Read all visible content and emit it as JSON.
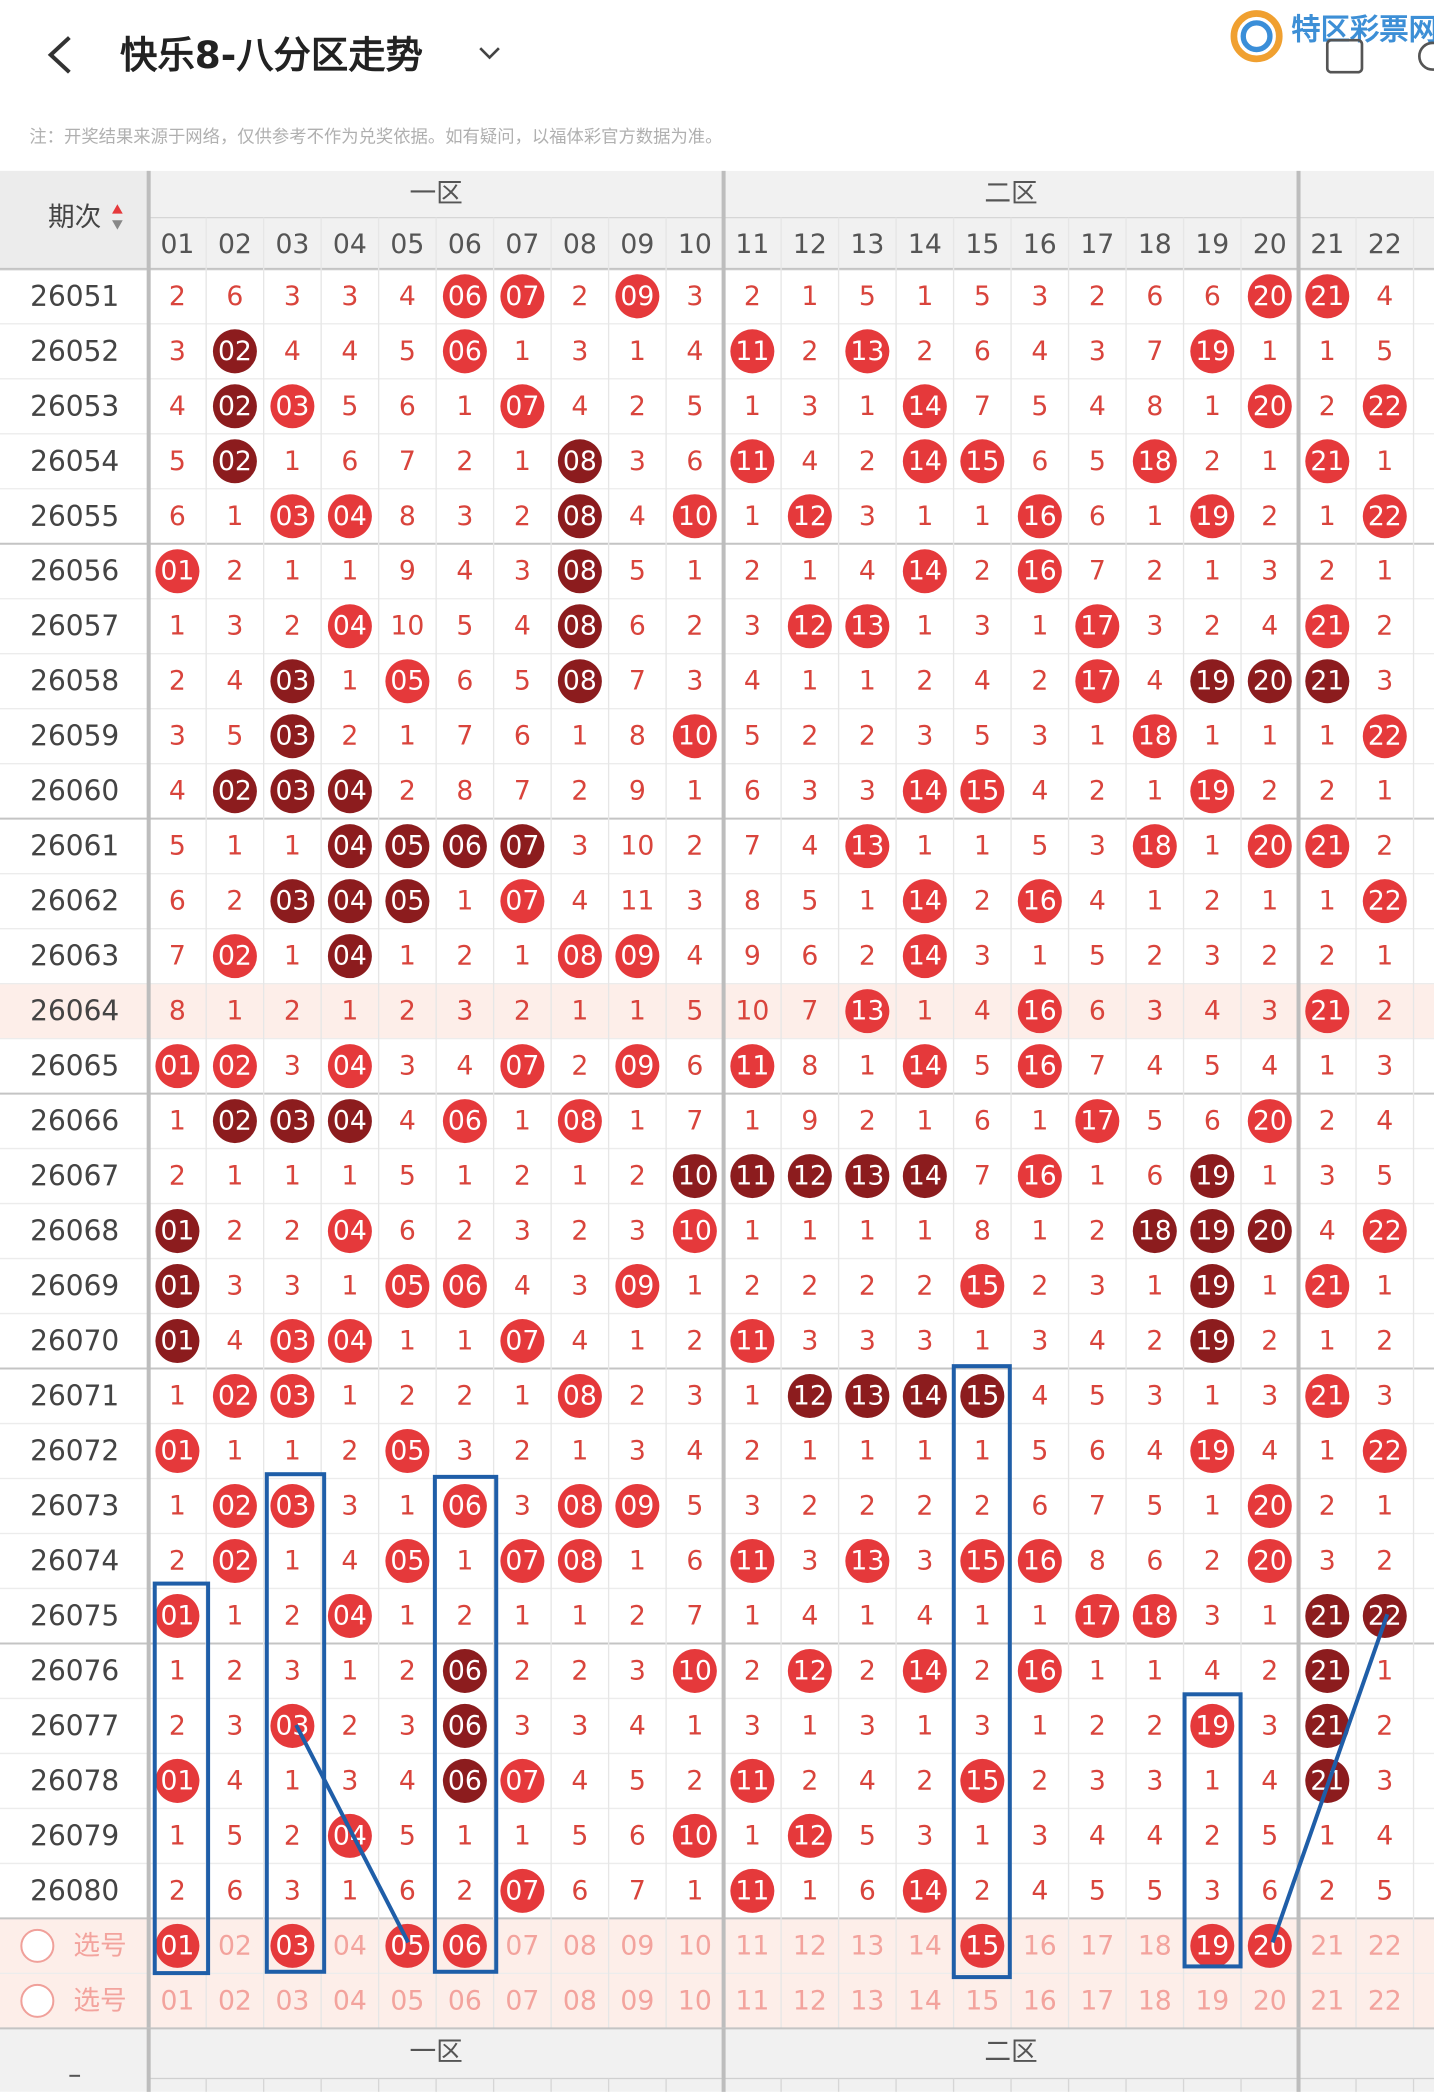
{
  "header": {
    "title": "快乐8-八分区走势",
    "logo": "特区彩票网"
  },
  "notice": "注：开奖结果来源于网络，仅供参考不作为兑奖依据。如有疑问，以福体彩官方数据为准。",
  "table": {
    "issue_header": "期次",
    "zones": [
      "一区",
      "二区"
    ],
    "columns": [
      "01",
      "02",
      "03",
      "04",
      "05",
      "06",
      "07",
      "08",
      "09",
      "10",
      "11",
      "12",
      "13",
      "14",
      "15",
      "16",
      "17",
      "18",
      "19",
      "20",
      "21",
      "22"
    ],
    "kind_colors": {
      "r": "#e5393b",
      "d": "#8c1c1e",
      "text": "#d9443c",
      "faded": "#f3a39d"
    },
    "highlight_row": "26064",
    "rows": [
      {
        "issue": "26051",
        "cells": [
          "2",
          "6",
          "3",
          "3",
          "4",
          "06",
          "07",
          "2",
          "09",
          "3",
          "2",
          "1",
          "5",
          "1",
          "5",
          "3",
          "2",
          "6",
          "6",
          "20",
          "21",
          "4"
        ],
        "kinds": ".....rr.r..........rr."
      },
      {
        "issue": "26052",
        "cells": [
          "3",
          "02",
          "4",
          "4",
          "5",
          "06",
          "1",
          "3",
          "1",
          "4",
          "11",
          "2",
          "13",
          "2",
          "6",
          "4",
          "3",
          "7",
          "19",
          "1",
          "1",
          "5"
        ],
        "kinds": ".d...r....r.r.....r..."
      },
      {
        "issue": "26053",
        "cells": [
          "4",
          "02",
          "03",
          "5",
          "6",
          "1",
          "07",
          "4",
          "2",
          "5",
          "1",
          "3",
          "1",
          "14",
          "7",
          "5",
          "4",
          "8",
          "1",
          "20",
          "2",
          "22"
        ],
        "kinds": ".dr...r......r.....r.r"
      },
      {
        "issue": "26054",
        "cells": [
          "5",
          "02",
          "1",
          "6",
          "7",
          "2",
          "1",
          "08",
          "3",
          "6",
          "11",
          "4",
          "2",
          "14",
          "15",
          "6",
          "5",
          "18",
          "2",
          "1",
          "21",
          "1"
        ],
        "kinds": ".d.....d..r..rr..r..r."
      },
      {
        "issue": "26055",
        "cells": [
          "6",
          "1",
          "03",
          "04",
          "8",
          "3",
          "2",
          "08",
          "4",
          "10",
          "1",
          "12",
          "3",
          "1",
          "1",
          "16",
          "6",
          "1",
          "19",
          "2",
          "1",
          "22"
        ],
        "kinds": "..rr...d.r.r...r..r..r"
      },
      {
        "issue": "26056",
        "cells": [
          "01",
          "2",
          "1",
          "1",
          "9",
          "4",
          "3",
          "08",
          "5",
          "1",
          "2",
          "1",
          "4",
          "14",
          "2",
          "16",
          "7",
          "2",
          "1",
          "3",
          "2",
          "1"
        ],
        "kinds": "r......d.....r.r......"
      },
      {
        "issue": "26057",
        "cells": [
          "1",
          "3",
          "2",
          "04",
          "10",
          "5",
          "4",
          "08",
          "6",
          "2",
          "3",
          "12",
          "13",
          "1",
          "3",
          "1",
          "17",
          "3",
          "2",
          "4",
          "21",
          "2"
        ],
        "kinds": "...r...d...rr...r...r."
      },
      {
        "issue": "26058",
        "cells": [
          "2",
          "4",
          "03",
          "1",
          "05",
          "6",
          "5",
          "08",
          "7",
          "3",
          "4",
          "1",
          "1",
          "2",
          "4",
          "2",
          "17",
          "4",
          "19",
          "20",
          "21",
          "3"
        ],
        "kinds": "..d.r..d........r.ddd."
      },
      {
        "issue": "26059",
        "cells": [
          "3",
          "5",
          "03",
          "2",
          "1",
          "7",
          "6",
          "1",
          "8",
          "10",
          "5",
          "2",
          "2",
          "3",
          "5",
          "3",
          "1",
          "18",
          "1",
          "1",
          "1",
          "22"
        ],
        "kinds": "..d......r.......r...r"
      },
      {
        "issue": "26060",
        "cells": [
          "4",
          "02",
          "03",
          "04",
          "2",
          "8",
          "7",
          "2",
          "9",
          "1",
          "6",
          "3",
          "3",
          "14",
          "15",
          "4",
          "2",
          "1",
          "19",
          "2",
          "2",
          "1"
        ],
        "kinds": ".ddd.........rr...r..."
      },
      {
        "issue": "26061",
        "cells": [
          "5",
          "1",
          "1",
          "04",
          "05",
          "06",
          "07",
          "3",
          "10",
          "2",
          "7",
          "4",
          "13",
          "1",
          "1",
          "5",
          "3",
          "18",
          "1",
          "20",
          "21",
          "2"
        ],
        "kinds": "...dddd.....r....r.rr."
      },
      {
        "issue": "26062",
        "cells": [
          "6",
          "2",
          "03",
          "04",
          "05",
          "1",
          "07",
          "4",
          "11",
          "3",
          "8",
          "5",
          "1",
          "14",
          "2",
          "16",
          "4",
          "1",
          "2",
          "1",
          "1",
          "22"
        ],
        "kinds": "..ddd.r......r.r.....r"
      },
      {
        "issue": "26063",
        "cells": [
          "7",
          "02",
          "1",
          "04",
          "1",
          "2",
          "1",
          "08",
          "09",
          "4",
          "9",
          "6",
          "2",
          "14",
          "3",
          "1",
          "5",
          "2",
          "3",
          "2",
          "2",
          "1"
        ],
        "kinds": ".r.d...rr....r........"
      },
      {
        "issue": "26064",
        "cells": [
          "8",
          "1",
          "2",
          "1",
          "2",
          "3",
          "2",
          "1",
          "1",
          "5",
          "10",
          "7",
          "13",
          "1",
          "4",
          "16",
          "6",
          "3",
          "4",
          "3",
          "21",
          "2"
        ],
        "kinds": "............r..r....r."
      },
      {
        "issue": "26065",
        "cells": [
          "01",
          "02",
          "3",
          "04",
          "3",
          "4",
          "07",
          "2",
          "09",
          "6",
          "11",
          "8",
          "1",
          "14",
          "5",
          "16",
          "7",
          "4",
          "5",
          "4",
          "1",
          "3"
        ],
        "kinds": "rr.r..r.r.r..r.r......"
      },
      {
        "issue": "26066",
        "cells": [
          "1",
          "02",
          "03",
          "04",
          "4",
          "06",
          "1",
          "08",
          "1",
          "7",
          "1",
          "9",
          "2",
          "1",
          "6",
          "1",
          "17",
          "5",
          "6",
          "20",
          "2",
          "4"
        ],
        "kinds": ".ddd.r.r........r..r.."
      },
      {
        "issue": "26067",
        "cells": [
          "2",
          "1",
          "1",
          "1",
          "5",
          "1",
          "2",
          "1",
          "2",
          "10",
          "11",
          "12",
          "13",
          "14",
          "7",
          "16",
          "1",
          "6",
          "19",
          "1",
          "3",
          "5"
        ],
        "kinds": ".........ddddd.r..d..."
      },
      {
        "issue": "26068",
        "cells": [
          "01",
          "2",
          "2",
          "04",
          "6",
          "2",
          "3",
          "2",
          "3",
          "10",
          "1",
          "1",
          "1",
          "1",
          "8",
          "1",
          "2",
          "18",
          "19",
          "20",
          "4",
          "22"
        ],
        "kinds": "d..r.....r.......ddd.r"
      },
      {
        "issue": "26069",
        "cells": [
          "01",
          "3",
          "3",
          "1",
          "05",
          "06",
          "4",
          "3",
          "09",
          "1",
          "2",
          "2",
          "2",
          "2",
          "15",
          "2",
          "3",
          "1",
          "19",
          "1",
          "21",
          "1"
        ],
        "kinds": "d...rr..r.....r...d.r."
      },
      {
        "issue": "26070",
        "cells": [
          "01",
          "4",
          "03",
          "04",
          "1",
          "1",
          "07",
          "4",
          "1",
          "2",
          "11",
          "3",
          "3",
          "3",
          "1",
          "3",
          "4",
          "2",
          "19",
          "2",
          "1",
          "2"
        ],
        "kinds": "d.rr..r...r.......d..."
      },
      {
        "issue": "26071",
        "cells": [
          "1",
          "02",
          "03",
          "1",
          "2",
          "2",
          "1",
          "08",
          "2",
          "3",
          "1",
          "12",
          "13",
          "14",
          "15",
          "4",
          "5",
          "3",
          "1",
          "3",
          "21",
          "3"
        ],
        "kinds": ".rr....r...dddd.....r."
      },
      {
        "issue": "26072",
        "cells": [
          "01",
          "1",
          "1",
          "2",
          "05",
          "3",
          "2",
          "1",
          "3",
          "4",
          "2",
          "1",
          "1",
          "1",
          "1",
          "5",
          "6",
          "4",
          "19",
          "4",
          "1",
          "22"
        ],
        "kinds": "r...r.............r..r"
      },
      {
        "issue": "26073",
        "cells": [
          "1",
          "02",
          "03",
          "3",
          "1",
          "06",
          "3",
          "08",
          "09",
          "5",
          "3",
          "2",
          "2",
          "2",
          "2",
          "6",
          "7",
          "5",
          "1",
          "20",
          "2",
          "1"
        ],
        "kinds": ".rr..r.rr..........r.."
      },
      {
        "issue": "26074",
        "cells": [
          "2",
          "02",
          "1",
          "4",
          "05",
          "1",
          "07",
          "08",
          "1",
          "6",
          "11",
          "3",
          "13",
          "3",
          "15",
          "16",
          "8",
          "6",
          "2",
          "20",
          "3",
          "2"
        ],
        "kinds": ".r..r.rr..r.r.rr...r.."
      },
      {
        "issue": "26075",
        "cells": [
          "01",
          "1",
          "2",
          "04",
          "1",
          "2",
          "1",
          "1",
          "2",
          "7",
          "1",
          "4",
          "1",
          "4",
          "1",
          "1",
          "17",
          "18",
          "3",
          "1",
          "21",
          "22"
        ],
        "kinds": "r..r............rr..dd"
      },
      {
        "issue": "26076",
        "cells": [
          "1",
          "2",
          "3",
          "1",
          "2",
          "06",
          "2",
          "2",
          "3",
          "10",
          "2",
          "12",
          "2",
          "14",
          "2",
          "16",
          "1",
          "1",
          "4",
          "2",
          "21",
          "1"
        ],
        "kinds": ".....d...r.r.r.r....d."
      },
      {
        "issue": "26077",
        "cells": [
          "2",
          "3",
          "03",
          "2",
          "3",
          "06",
          "3",
          "3",
          "4",
          "1",
          "3",
          "1",
          "3",
          "1",
          "3",
          "1",
          "2",
          "2",
          "19",
          "3",
          "21",
          "2"
        ],
        "kinds": "..r..d............r.d."
      },
      {
        "issue": "26078",
        "cells": [
          "01",
          "4",
          "1",
          "3",
          "4",
          "06",
          "07",
          "4",
          "5",
          "2",
          "11",
          "2",
          "4",
          "2",
          "15",
          "2",
          "3",
          "3",
          "1",
          "4",
          "21",
          "3"
        ],
        "kinds": "r....dr...r...r.....d."
      },
      {
        "issue": "26079",
        "cells": [
          "1",
          "5",
          "2",
          "04",
          "5",
          "1",
          "1",
          "5",
          "6",
          "10",
          "1",
          "12",
          "5",
          "3",
          "1",
          "3",
          "4",
          "4",
          "2",
          "5",
          "1",
          "4"
        ],
        "kinds": "...r.....r.r.........."
      },
      {
        "issue": "26080",
        "cells": [
          "2",
          "6",
          "3",
          "1",
          "6",
          "2",
          "07",
          "6",
          "7",
          "1",
          "11",
          "1",
          "6",
          "14",
          "2",
          "4",
          "5",
          "5",
          "3",
          "6",
          "2",
          "5"
        ],
        "kinds": "......r...r..r........"
      }
    ],
    "pick_rows": [
      {
        "label": "选号",
        "cells": [
          "01",
          "02",
          "03",
          "04",
          "05",
          "06",
          "07",
          "08",
          "09",
          "10",
          "11",
          "12",
          "13",
          "14",
          "15",
          "16",
          "17",
          "18",
          "19",
          "20",
          "21",
          "22"
        ],
        "kinds": "r.r.rr........r...rr.."
      },
      {
        "label": "选号",
        "cells": [
          "01",
          "02",
          "03",
          "04",
          "05",
          "06",
          "07",
          "08",
          "09",
          "10",
          "11",
          "12",
          "13",
          "14",
          "15",
          "16",
          "17",
          "18",
          "19",
          "20",
          "21",
          "22"
        ],
        "kinds": "......................"
      }
    ],
    "footer_zones": [
      "一区",
      "二区"
    ]
  }
}
